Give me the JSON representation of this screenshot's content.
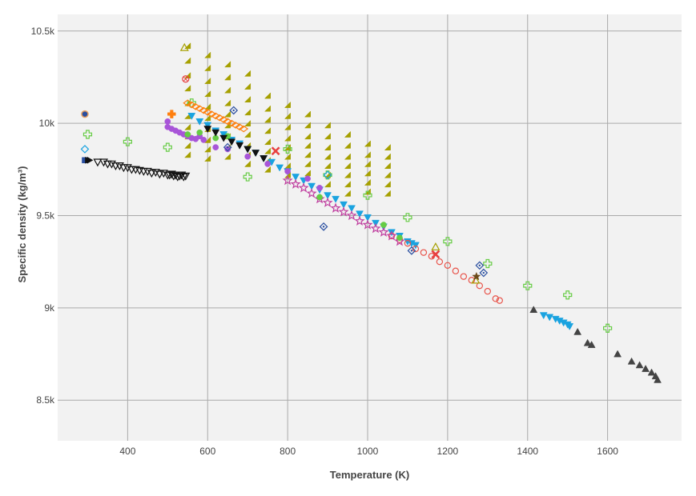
{
  "chart_data": {
    "type": "scatter",
    "title": "",
    "xlabel": "Temperature (K)",
    "ylabel": "Specific density (kg/m³)",
    "xlim": [
      225,
      1785
    ],
    "ylim": [
      8280,
      10590
    ],
    "x_ticks": [
      {
        "value": 400,
        "label": "400"
      },
      {
        "value": 600,
        "label": "600"
      },
      {
        "value": 800,
        "label": "800"
      },
      {
        "value": 1000,
        "label": "1000"
      },
      {
        "value": 1200,
        "label": "1200"
      },
      {
        "value": 1400,
        "label": "1400"
      },
      {
        "value": 1600,
        "label": "1600"
      }
    ],
    "y_ticks": [
      {
        "value": 8500,
        "label": "8.5k"
      },
      {
        "value": 9000,
        "label": "9k"
      },
      {
        "value": 9500,
        "label": "9.5k"
      },
      {
        "value": 10000,
        "label": "10k"
      },
      {
        "value": 10500,
        "label": "10.5k"
      }
    ],
    "grid": true,
    "legend": "none",
    "colors": {
      "plot_background": "#f2f2f2",
      "grid": "#aaaaaa",
      "axis_text": "#444444"
    },
    "series": [
      {
        "marker": "triangle-down-open",
        "color": "#111111",
        "x": [
          325,
          340,
          350,
          360,
          370,
          380,
          390,
          400,
          410,
          420,
          430,
          440,
          450,
          460,
          470,
          480,
          490,
          500,
          505,
          510,
          515,
          520,
          525,
          530,
          535,
          540,
          545
        ],
        "y": [
          9790,
          9790,
          9780,
          9780,
          9770,
          9770,
          9760,
          9760,
          9750,
          9750,
          9745,
          9740,
          9740,
          9730,
          9735,
          9725,
          9730,
          9720,
          9720,
          9725,
          9715,
          9720,
          9710,
          9715,
          9720,
          9710,
          9715
        ]
      },
      {
        "marker": "triangle-ne",
        "color": "#a6a000",
        "x": [
          550,
          550,
          550,
          550,
          550,
          550,
          550,
          550,
          550,
          550,
          600,
          600,
          600,
          600,
          600,
          600,
          600,
          600,
          600,
          600,
          650,
          650,
          650,
          650,
          650,
          650,
          650,
          650,
          650,
          700,
          700,
          700,
          700,
          700,
          700,
          700,
          700,
          700,
          750,
          750,
          750,
          750,
          750,
          750,
          750,
          750,
          800,
          800,
          800,
          800,
          800,
          800,
          800,
          800,
          850,
          850,
          850,
          850,
          850,
          850,
          850,
          900,
          900,
          900,
          900,
          900,
          900,
          900,
          950,
          950,
          950,
          950,
          950,
          950,
          950,
          1000,
          1000,
          1000,
          1000,
          1000,
          1000,
          1050,
          1050,
          1050,
          1050,
          1050,
          1050
        ],
        "y": [
          10420,
          10340,
          10260,
          10190,
          10110,
          10040,
          9980,
          9930,
          9880,
          9830,
          10370,
          10300,
          10230,
          10160,
          10090,
          10030,
          9970,
          9910,
          9860,
          9810,
          10320,
          10250,
          10180,
          10110,
          10050,
          9990,
          9930,
          9870,
          9820,
          10270,
          10200,
          10130,
          10060,
          10000,
          9940,
          9880,
          9830,
          9780,
          10150,
          10080,
          10020,
          9960,
          9900,
          9850,
          9800,
          9750,
          10100,
          10040,
          9980,
          9920,
          9870,
          9820,
          9770,
          9720,
          10050,
          9990,
          9930,
          9880,
          9830,
          9780,
          9730,
          9990,
          9930,
          9870,
          9820,
          9770,
          9720,
          9670,
          9940,
          9880,
          9820,
          9770,
          9720,
          9670,
          9620,
          9890,
          9830,
          9780,
          9730,
          9680,
          9630,
          9870,
          9820,
          9770,
          9720,
          9670,
          9620
        ]
      },
      {
        "marker": "triangle-down",
        "color": "#1aa3e0",
        "x": [
          560,
          580,
          600,
          620,
          640,
          660,
          680,
          700,
          720,
          740,
          760,
          780,
          800,
          820,
          840,
          860,
          880,
          900,
          920,
          940,
          960,
          980,
          1000,
          1020,
          1040,
          1060,
          1080,
          1100,
          1110,
          1120,
          1440,
          1455,
          1470,
          1480,
          1490,
          1500,
          1505
        ],
        "y": [
          10040,
          10010,
          9990,
          9960,
          9940,
          9910,
          9890,
          9860,
          9840,
          9810,
          9790,
          9760,
          9740,
          9710,
          9690,
          9660,
          9640,
          9610,
          9590,
          9560,
          9540,
          9510,
          9490,
          9460,
          9440,
          9410,
          9390,
          9360,
          9350,
          9340,
          8960,
          8950,
          8940,
          8930,
          8920,
          8910,
          8900
        ]
      },
      {
        "marker": "circle-open",
        "color": "#e8534a",
        "x": [
          1060,
          1080,
          1100,
          1120,
          1140,
          1160,
          1180,
          1200,
          1220,
          1240,
          1260,
          1280,
          1300,
          1320,
          1330
        ],
        "y": [
          9390,
          9370,
          9350,
          9320,
          9300,
          9280,
          9250,
          9230,
          9200,
          9170,
          9150,
          9120,
          9090,
          9050,
          9040
        ]
      },
      {
        "marker": "triangle-up",
        "color": "#444444",
        "x": [
          1415,
          1525,
          1550,
          1560,
          1625,
          1660,
          1680,
          1695,
          1710,
          1720,
          1725
        ],
        "y": [
          8990,
          8870,
          8810,
          8800,
          8750,
          8710,
          8690,
          8670,
          8650,
          8630,
          8610
        ]
      },
      {
        "marker": "star-open",
        "color": "#c040a0",
        "x": [
          800,
          820,
          840,
          860,
          880,
          900,
          920,
          940,
          960,
          980,
          1000,
          1020,
          1040,
          1060,
          1080
        ],
        "y": [
          9690,
          9670,
          9650,
          9620,
          9590,
          9570,
          9540,
          9520,
          9500,
          9470,
          9450,
          9430,
          9410,
          9390,
          9360
        ]
      },
      {
        "marker": "circle",
        "color": "#a855d8",
        "x": [
          500,
          500,
          510,
          520,
          530,
          540,
          550,
          560,
          570,
          580,
          590,
          620,
          650,
          700,
          750,
          800,
          850,
          880
        ],
        "y": [
          10010,
          9980,
          9970,
          9960,
          9950,
          9940,
          9930,
          9920,
          9915,
          9930,
          9910,
          9870,
          9860,
          9820,
          9780,
          9740,
          9700,
          9650
        ]
      },
      {
        "marker": "circle",
        "color": "#66cc44",
        "x": [
          550,
          580,
          620,
          650,
          880,
          1040,
          1080
        ],
        "y": [
          9940,
          9950,
          9920,
          9930,
          9600,
          9450,
          9380
        ]
      },
      {
        "marker": "cross-open",
        "color": "#66cc44",
        "x": [
          300,
          400,
          500,
          560,
          700,
          800,
          900,
          1000,
          1100,
          1200,
          1300,
          1400,
          1500,
          1600
        ],
        "y": [
          9940,
          9900,
          9870,
          10110,
          9710,
          9860,
          9720,
          9610,
          9490,
          9360,
          9240,
          9120,
          9070,
          8890
        ]
      },
      {
        "marker": "diamond-open-dot",
        "color": "#2a4fa0",
        "x": [
          650,
          665,
          890,
          1110,
          1280,
          1290
        ],
        "y": [
          9870,
          10070,
          9440,
          9310,
          9230,
          9190
        ]
      },
      {
        "marker": "diamond-open",
        "color": "#1aa3e0",
        "x": [
          293,
          900
        ],
        "y": [
          9860,
          9720
        ]
      },
      {
        "marker": "x",
        "color": "#e84040",
        "x": [
          770,
          1170
        ],
        "y": [
          9850,
          9290
        ]
      },
      {
        "marker": "cross",
        "color": "#ff7f0e",
        "x": [
          510
        ],
        "y": [
          10050
        ]
      },
      {
        "marker": "diamond-wide-open",
        "color": "#ff7f0e",
        "x": [
          550,
          560,
          570,
          580,
          590,
          600,
          610,
          620,
          630,
          640,
          650,
          660,
          670,
          680,
          690
        ],
        "y": [
          10110,
          10100,
          10090,
          10080,
          10070,
          10060,
          10050,
          10040,
          10030,
          10020,
          10010,
          10000,
          9990,
          9980,
          9970
        ]
      },
      {
        "marker": "circle-open-x",
        "color": "#e84040",
        "x": [
          545
        ],
        "y": [
          10240
        ]
      },
      {
        "marker": "triangle-up-open",
        "color": "#a6a000",
        "x": [
          542,
          1170,
          1270
        ],
        "y": [
          10410,
          9330,
          9150
        ]
      },
      {
        "marker": "star",
        "color": "#6b4a1a",
        "x": [
          1272
        ],
        "y": [
          9170
        ]
      },
      {
        "marker": "circle-dot",
        "color": "#2a4fa0",
        "x": [
          293
        ],
        "y": [
          10050
        ]
      },
      {
        "marker": "square",
        "color": "#2a4fa0",
        "x": [
          293
        ],
        "y": [
          9800
        ]
      },
      {
        "marker": "arrow-right",
        "color": "#111111",
        "x": [
          300,
          305
        ],
        "y": [
          9800,
          9800
        ]
      },
      {
        "marker": "triangle-down",
        "color": "#111111",
        "x": [
          600,
          620,
          640,
          660,
          680,
          700,
          720,
          740
        ],
        "y": [
          9970,
          9950,
          9920,
          9900,
          9880,
          9860,
          9840,
          9810
        ]
      }
    ]
  }
}
